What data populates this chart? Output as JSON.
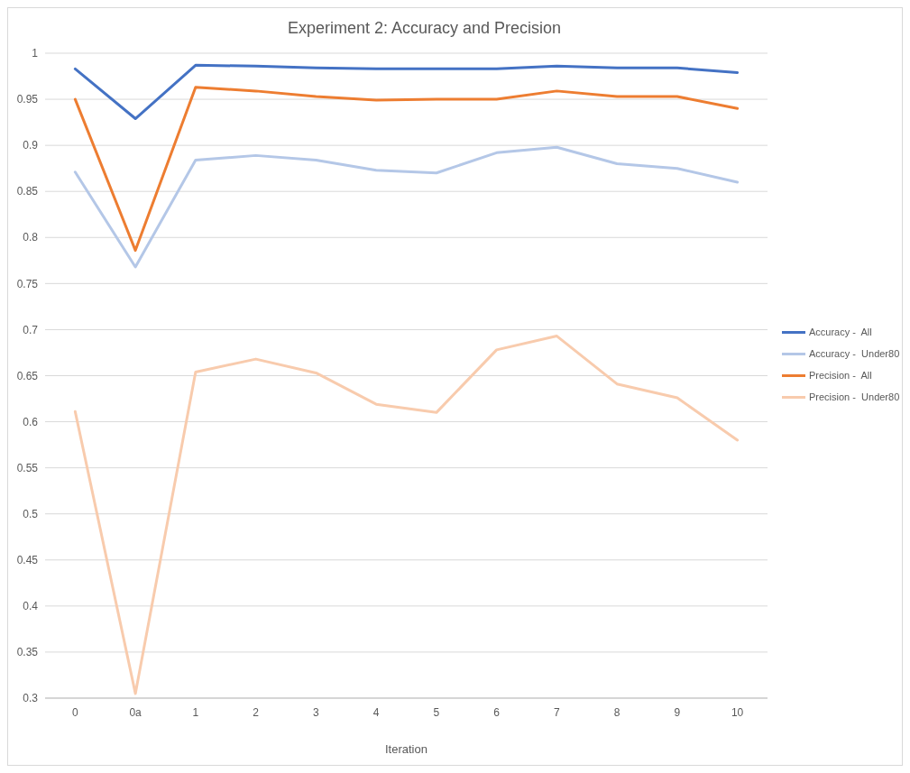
{
  "chart_data": {
    "type": "line",
    "title": "Experiment 2: Accuracy and Precision",
    "xlabel": "Iteration",
    "categories": [
      "0",
      "0a",
      "1",
      "2",
      "3",
      "4",
      "5",
      "6",
      "7",
      "8",
      "9",
      "10"
    ],
    "series": [
      {
        "name": "Accuracy -  All",
        "color": "#4472c4",
        "values": [
          0.983,
          0.929,
          0.987,
          0.986,
          0.984,
          0.983,
          0.983,
          0.983,
          0.986,
          0.984,
          0.984,
          0.979
        ]
      },
      {
        "name": "Accuracy -  Under80",
        "color": "#b4c7e7",
        "values": [
          0.871,
          0.768,
          0.884,
          0.889,
          0.884,
          0.873,
          0.87,
          0.892,
          0.898,
          0.88,
          0.875,
          0.86
        ]
      },
      {
        "name": "Precision -  All",
        "color": "#ed7d31",
        "values": [
          0.95,
          0.786,
          0.963,
          0.959,
          0.953,
          0.949,
          0.95,
          0.95,
          0.959,
          0.953,
          0.953,
          0.94
        ]
      },
      {
        "name": "Precision -  Under80",
        "color": "#f8cbad",
        "values": [
          0.611,
          0.305,
          0.654,
          0.668,
          0.653,
          0.619,
          0.61,
          0.678,
          0.693,
          0.641,
          0.626,
          0.58
        ]
      }
    ],
    "ylim": [
      0.3,
      1
    ],
    "yticks": [
      0.3,
      0.35,
      0.4,
      0.45,
      0.5,
      0.55,
      0.6,
      0.65,
      0.7,
      0.75,
      0.8,
      0.85,
      0.9,
      0.95,
      1
    ],
    "grid": "y",
    "legend": "right",
    "marker": "none",
    "line_style": "solid"
  }
}
